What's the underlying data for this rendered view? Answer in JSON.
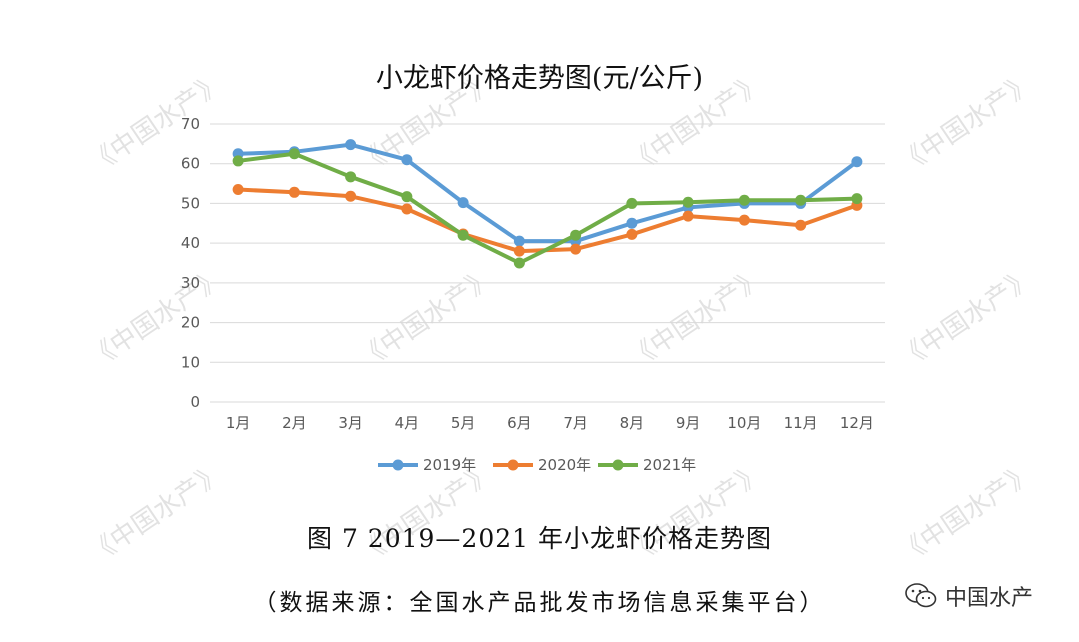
{
  "chart_data": {
    "type": "line",
    "title": "小龙虾价格走势图(元/公斤)",
    "categories": [
      "1月",
      "2月",
      "3月",
      "4月",
      "5月",
      "6月",
      "7月",
      "8月",
      "9月",
      "10月",
      "11月",
      "12月"
    ],
    "ylim": [
      0,
      70
    ],
    "yticks": [
      0,
      10,
      20,
      30,
      40,
      50,
      60,
      70
    ],
    "grid": true,
    "legend_position": "bottom",
    "series": [
      {
        "name": "2019年",
        "color": "#5B9BD5",
        "values": [
          62.5,
          63,
          64.8,
          61,
          50.2,
          40.5,
          40.5,
          45,
          49,
          50,
          50,
          60.5
        ]
      },
      {
        "name": "2020年",
        "color": "#ED7D31",
        "values": [
          53.5,
          52.8,
          51.8,
          48.6,
          42.3,
          38,
          38.5,
          42.2,
          46.8,
          45.8,
          44.5,
          49.5
        ]
      },
      {
        "name": "2021年",
        "color": "#70AD47",
        "values": [
          60.7,
          62.5,
          56.7,
          51.7,
          42,
          35,
          42,
          50,
          50.3,
          50.8,
          50.8,
          51.2
        ]
      }
    ]
  },
  "caption": "图 7 2019—2021 年小龙虾价格走势图",
  "source": "（数据来源：全国水产品批发市场信息采集平台）",
  "watermark": "《中国水产》",
  "brand": {
    "name": "中国水产",
    "icon": "wechat-icon"
  }
}
